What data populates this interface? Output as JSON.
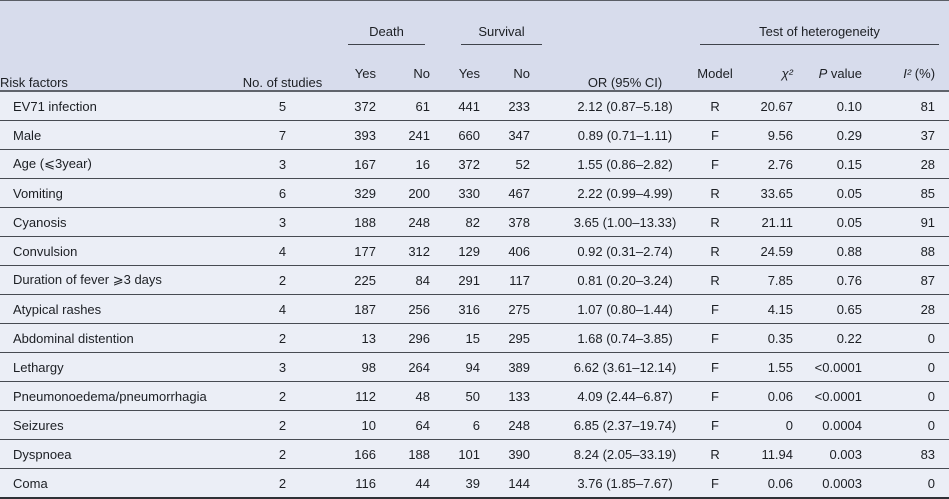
{
  "table": {
    "header": {
      "risk_factors": "Risk factors",
      "no_of_studies": "No. of studies",
      "death": "Death",
      "survival": "Survival",
      "or_ci": "OR (95% CI)",
      "heterogeneity": "Test of heterogeneity",
      "death_yes": "Yes",
      "death_no": "No",
      "survival_yes": "Yes",
      "survival_no": "No",
      "model": "Model",
      "chi2": "χ²",
      "p_main": "P",
      "p_rest": " value",
      "i2_main": "I²",
      "i2_rest": " (%)"
    },
    "rows": [
      [
        "EV71 infection",
        "5",
        "372",
        "61",
        "441",
        "233",
        "2.12 (0.87–5.18)",
        "R",
        "20.67",
        "0.10",
        "81"
      ],
      [
        "Male",
        "7",
        "393",
        "241",
        "660",
        "347",
        "0.89 (0.71–1.11)",
        "F",
        "9.56",
        "0.29",
        "37"
      ],
      [
        "Age (⩽3year)",
        "3",
        "167",
        "16",
        "372",
        "52",
        "1.55 (0.86–2.82)",
        "F",
        "2.76",
        "0.15",
        "28"
      ],
      [
        "Vomiting",
        "6",
        "329",
        "200",
        "330",
        "467",
        "2.22 (0.99–4.99)",
        "R",
        "33.65",
        "0.05",
        "85"
      ],
      [
        "Cyanosis",
        "3",
        "188",
        "248",
        "82",
        "378",
        "3.65 (1.00–13.33)",
        "R",
        "21.11",
        "0.05",
        "91"
      ],
      [
        "Convulsion",
        "4",
        "177",
        "312",
        "129",
        "406",
        "0.92 (0.31–2.74)",
        "R",
        "24.59",
        "0.88",
        "88"
      ],
      [
        "Duration of fever ⩾3 days",
        "2",
        "225",
        "84",
        "291",
        "117",
        "0.81 (0.20–3.24)",
        "R",
        "7.85",
        "0.76",
        "87"
      ],
      [
        "Atypical rashes",
        "4",
        "187",
        "256",
        "316",
        "275",
        "1.07 (0.80–1.44)",
        "F",
        "4.15",
        "0.65",
        "28"
      ],
      [
        "Abdominal distention",
        "2",
        "13",
        "296",
        "15",
        "295",
        "1.68 (0.74–3.85)",
        "F",
        "0.35",
        "0.22",
        "0"
      ],
      [
        "Lethargy",
        "3",
        "98",
        "264",
        "94",
        "389",
        "6.62 (3.61–12.14)",
        "F",
        "1.55",
        "<0.0001",
        "0"
      ],
      [
        "Pneumonoedema/pneumorrhagia",
        "2",
        "112",
        "48",
        "50",
        "133",
        "4.09 (2.44–6.87)",
        "F",
        "0.06",
        "<0.0001",
        "0"
      ],
      [
        "Seizures",
        "2",
        "10",
        "64",
        "6",
        "248",
        "6.85 (2.37–19.74)",
        "F",
        "0",
        "0.0004",
        "0"
      ],
      [
        "Dyspnoea",
        "2",
        "166",
        "188",
        "101",
        "390",
        "8.24 (2.05–33.19)",
        "R",
        "11.94",
        "0.003",
        "83"
      ],
      [
        "Coma",
        "2",
        "116",
        "44",
        "39",
        "144",
        "3.76 (1.85–7.67)",
        "F",
        "0.06",
        "0.0003",
        "0"
      ]
    ]
  },
  "colors": {
    "header_bg": "#d7dcec",
    "body_bg": "#ebeef6",
    "rule_dark": "#474b52",
    "border_bottom": "#2e3136",
    "text": "#1c1f24"
  }
}
